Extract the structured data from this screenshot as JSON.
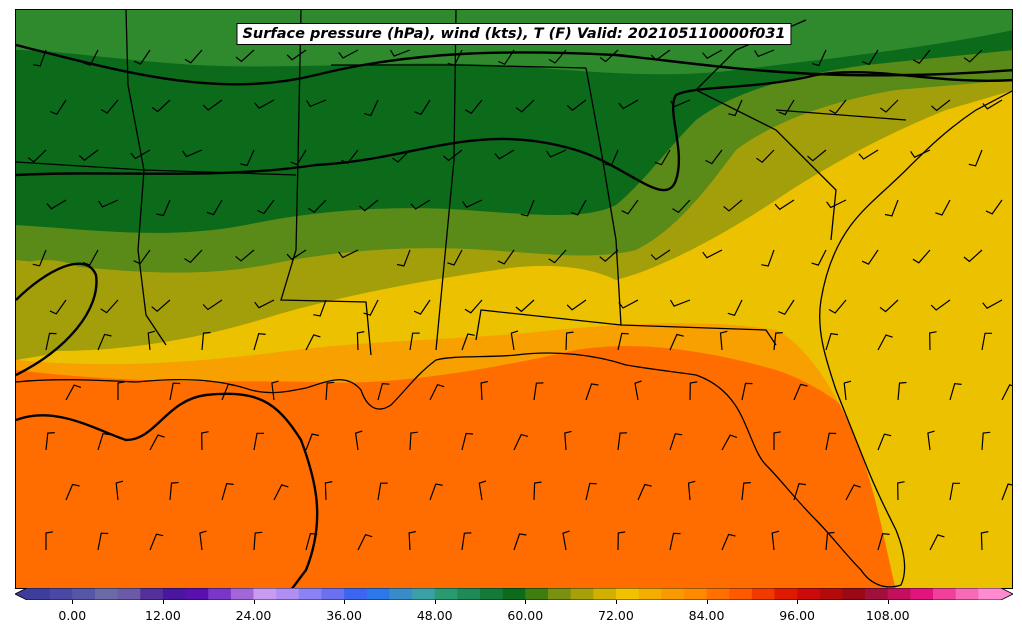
{
  "map": {
    "title": "Surface pressure (hPa), wind (kts), T (F) Valid: 202105110000f031",
    "fill_colors": {
      "dark_green": "#0b6b1a",
      "mid_green": "#2f8a2e",
      "olive_green": "#5a8a17",
      "olive": "#a39f0a",
      "yellow": "#ecc100",
      "orange_light": "#f7a000",
      "orange": "#ff6d00",
      "water_green": "#1f8a4d"
    },
    "isobar_color": "#000000",
    "barb_color": "#000000"
  },
  "colorbar": {
    "tick_labels": [
      "0.00",
      "12.00",
      "24.00",
      "36.00",
      "48.00",
      "60.00",
      "72.00",
      "84.00",
      "96.00",
      "108.00"
    ],
    "min": -6,
    "max": 123,
    "colors": [
      "#3d3d9c",
      "#4a48a4",
      "#5656a6",
      "#6a6aa8",
      "#6b5aa7",
      "#55309a",
      "#4a16a0",
      "#5a0fb0",
      "#7a36c8",
      "#a366d8",
      "#c89af0",
      "#b08ef2",
      "#8a82f5",
      "#6a70f0",
      "#3d66f0",
      "#2b78e8",
      "#3a8cc8",
      "#3ca0a8",
      "#2a9a70",
      "#1f8a55",
      "#147a3a",
      "#0b6b1a",
      "#3e7e10",
      "#7a9010",
      "#a8a00a",
      "#d2b000",
      "#f0c200",
      "#f5ae00",
      "#f89a00",
      "#ff8a00",
      "#ff7000",
      "#ff5a00",
      "#f03a00",
      "#e01a00",
      "#cc0a0a",
      "#b50a0a",
      "#9a0a14",
      "#a0103c",
      "#c4105c",
      "#e0147c",
      "#f0409a",
      "#f86ab6",
      "#ff8ad0"
    ]
  }
}
